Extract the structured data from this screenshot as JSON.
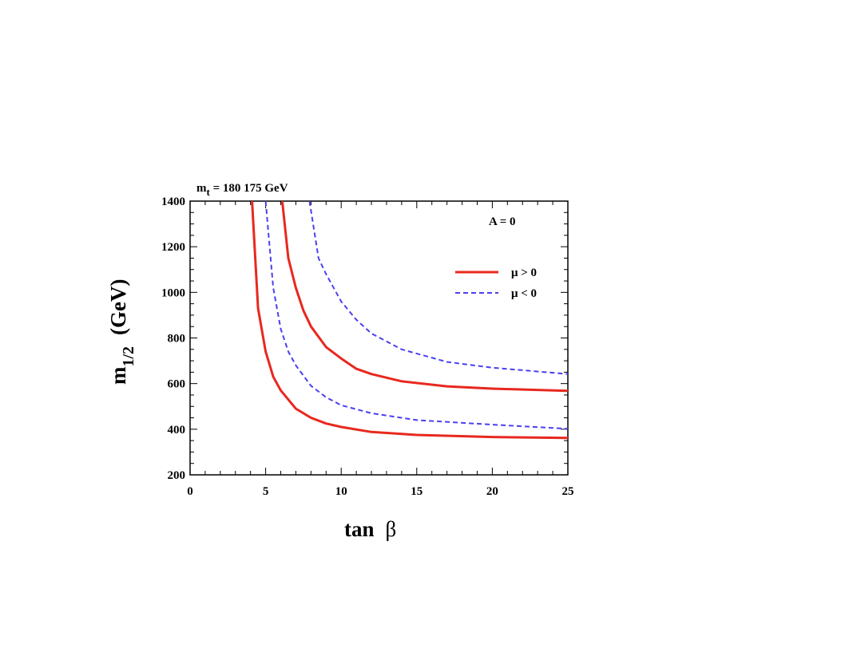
{
  "chart_data": {
    "type": "line",
    "title_main": "m",
    "title_sub": "t",
    "title_rest": " = 180 175 GeV",
    "annotation": "A = 0",
    "xlabel_main": "tan",
    "xlabel_symbol": "β",
    "ylabel_main": "m",
    "ylabel_sub": "1/2",
    "ylabel_rest": "(GeV)",
    "xlim": [
      0,
      25
    ],
    "ylim": [
      200,
      1400
    ],
    "xticks": [
      0,
      5,
      10,
      15,
      20,
      25
    ],
    "yticks": [
      200,
      400,
      600,
      800,
      1000,
      1200,
      1400
    ],
    "legend": [
      {
        "label": "μ > 0",
        "color": "#e8281e",
        "style": "solid"
      },
      {
        "label": "μ < 0",
        "color": "#4a3ff0",
        "style": "dashed"
      }
    ],
    "series": [
      {
        "name": "μ > 0 (mt = 180 GeV)",
        "sign": "mu>0",
        "color": "#e8281e",
        "dashed": false,
        "x": [
          4.1,
          4.5,
          5.0,
          5.5,
          6.0,
          7.0,
          8.0,
          9.0,
          10.0,
          12.0,
          15.0,
          20.0,
          25.0
        ],
        "y": [
          1400,
          930,
          740,
          630,
          570,
          490,
          450,
          425,
          410,
          388,
          375,
          366,
          362
        ]
      },
      {
        "name": "μ < 0 (mt = 180 GeV)",
        "sign": "mu<0",
        "color": "#4a3ff0",
        "dashed": true,
        "x": [
          5.0,
          5.5,
          6.0,
          6.5,
          7.0,
          8.0,
          9.0,
          10.0,
          12.0,
          15.0,
          20.0,
          25.0
        ],
        "y": [
          1400,
          1020,
          840,
          740,
          680,
          590,
          540,
          505,
          470,
          440,
          420,
          402
        ]
      },
      {
        "name": "μ > 0 (mt = 175 GeV)",
        "sign": "mu>0",
        "color": "#e8281e",
        "dashed": false,
        "x": [
          6.1,
          6.5,
          7.0,
          7.5,
          8.0,
          9.0,
          10.0,
          11.0,
          12.0,
          14.0,
          17.0,
          20.0,
          25.0
        ],
        "y": [
          1400,
          1150,
          1020,
          920,
          850,
          760,
          710,
          665,
          642,
          610,
          588,
          578,
          568
        ]
      },
      {
        "name": "μ < 0 (mt = 175 GeV)",
        "sign": "mu<0",
        "color": "#4a3ff0",
        "dashed": true,
        "x": [
          7.9,
          8.5,
          9.0,
          10.0,
          11.0,
          12.0,
          14.0,
          17.0,
          20.0,
          25.0
        ],
        "y": [
          1400,
          1150,
          1080,
          960,
          880,
          820,
          750,
          695,
          670,
          642
        ]
      }
    ]
  }
}
